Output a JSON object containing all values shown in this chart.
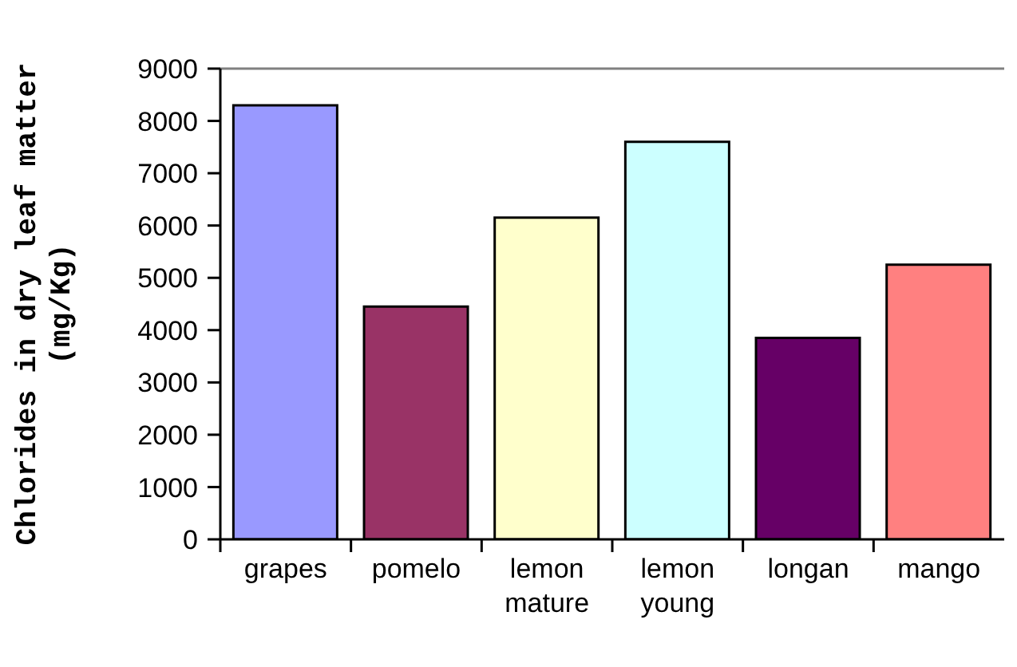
{
  "chart_data": {
    "type": "bar",
    "ylabel": "Chlorides in dry leaf matter (mg/Kg)",
    "categories": [
      "grapes",
      "pomelo",
      "lemon mature",
      "lemon young",
      "longan",
      "mango"
    ],
    "values": [
      8300,
      4450,
      6150,
      7600,
      3850,
      5250
    ],
    "colors": [
      "#9999ff",
      "#993366",
      "#ffffcc",
      "#ccffff",
      "#660066",
      "#ff8080"
    ],
    "ylim": [
      0,
      9000
    ],
    "yticks": [
      0,
      1000,
      2000,
      3000,
      4000,
      5000,
      6000,
      7000,
      8000,
      9000
    ]
  }
}
